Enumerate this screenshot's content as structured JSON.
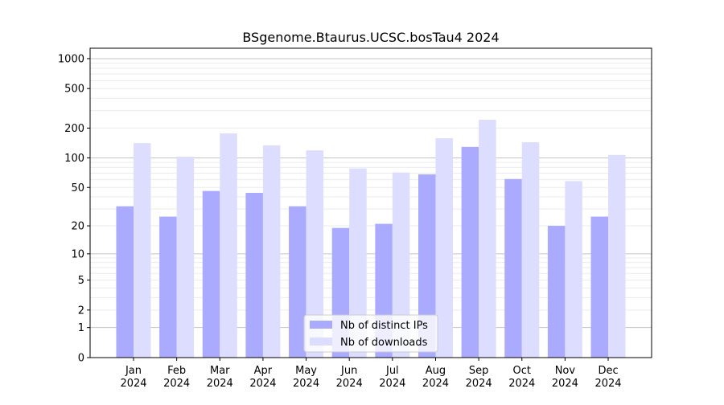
{
  "chart_data": {
    "type": "bar",
    "title": "BSgenome.Btaurus.UCSC.bosTau4 2024",
    "xlabel": "",
    "ylabel": "",
    "y_scale": "log10(1+y)",
    "ylim": [
      0,
      1200
    ],
    "grid": true,
    "legend_position": "lower-center",
    "categories": [
      "Jan\n2024",
      "Feb\n2024",
      "Mar\n2024",
      "Apr\n2024",
      "May\n2024",
      "Jun\n2024",
      "Jul\n2024",
      "Aug\n2024",
      "Sep\n2024",
      "Oct\n2024",
      "Nov\n2024",
      "Dec\n2024"
    ],
    "yticks": [
      0,
      1,
      2,
      5,
      10,
      20,
      50,
      100,
      200,
      500,
      1000
    ],
    "series": [
      {
        "name": "Nb of distinct IPs",
        "color": "#aaaaff",
        "values": [
          32,
          25,
          46,
          44,
          32,
          19,
          21,
          68,
          129,
          61,
          20,
          25
        ]
      },
      {
        "name": "Nb of downloads",
        "color": "#ddddff",
        "values": [
          141,
          103,
          177,
          134,
          119,
          78,
          71,
          158,
          243,
          144,
          58,
          107
        ]
      }
    ]
  }
}
